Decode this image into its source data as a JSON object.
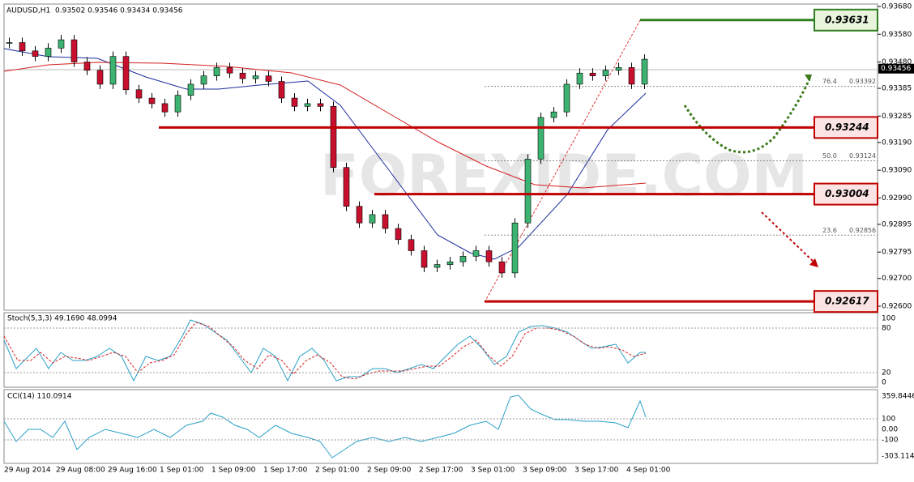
{
  "header": {
    "symbol": "AUDUSD,H1",
    "ohlc": "0.93502 0.93546 0.93434 0.93456"
  },
  "watermark": "FOREXIDE.COM",
  "price_axis": {
    "ylim": [
      0.926,
      0.9368
    ],
    "ticks": [
      {
        "value": 0.9368,
        "label": "0.93680"
      },
      {
        "value": 0.9358,
        "label": "0.93580"
      },
      {
        "value": 0.9348,
        "label": "0.93480"
      },
      {
        "value": 0.93385,
        "label": "0.93385"
      },
      {
        "value": 0.93285,
        "label": "0.93285"
      },
      {
        "value": 0.9319,
        "label": "0.93190"
      },
      {
        "value": 0.9309,
        "label": "0.93090"
      },
      {
        "value": 0.9299,
        "label": "0.92990"
      },
      {
        "value": 0.92895,
        "label": "0.92895"
      },
      {
        "value": 0.92795,
        "label": "0.92795"
      },
      {
        "value": 0.927,
        "label": "0.92700"
      },
      {
        "value": 0.926,
        "label": "0.92600"
      }
    ]
  },
  "current_price": {
    "value": 0.93456,
    "label": "0.93456"
  },
  "levels": [
    {
      "value": 0.93631,
      "label": "0.93631",
      "color": "#2e7d1e"
    },
    {
      "value": 0.93244,
      "label": "0.93244",
      "color": "#c00000"
    },
    {
      "value": 0.93004,
      "label": "0.93004",
      "color": "#c00000"
    },
    {
      "value": 0.92617,
      "label": "0.92617",
      "color": "#c00000"
    }
  ],
  "fib": [
    {
      "level": "76.4",
      "value": 0.93392,
      "label": "0.93392"
    },
    {
      "level": "50.0",
      "value": 0.93124,
      "label": "0.93124"
    },
    {
      "level": "23.6",
      "value": 0.92856,
      "label": "0.92856"
    }
  ],
  "closes": [
    0.9355,
    0.9352,
    0.935,
    0.9353,
    0.9356,
    0.9348,
    0.9345,
    0.934,
    0.935,
    0.9338,
    0.9335,
    0.9333,
    0.933,
    0.9336,
    0.934,
    0.9343,
    0.9346,
    0.9344,
    0.9342,
    0.9343,
    0.9341,
    0.9335,
    0.9332,
    0.9333,
    0.9332,
    0.931,
    0.9296,
    0.929,
    0.9293,
    0.9288,
    0.9284,
    0.928,
    0.9274,
    0.9275,
    0.9276,
    0.9278,
    0.928,
    0.9276,
    0.9272,
    0.929,
    0.9313,
    0.9328,
    0.933,
    0.934,
    0.9344,
    0.9343,
    0.9345,
    0.9346,
    0.934,
    0.9349
  ],
  "time_labels": [
    "29 Aug 2014",
    "29 Aug 08:00",
    "29 Aug 16:00",
    "1 Sep 01:00",
    "1 Sep 09:00",
    "1 Sep 17:00",
    "2 Sep 01:00",
    "2 Sep 09:00",
    "2 Sep 17:00",
    "3 Sep 01:00",
    "3 Sep 09:00",
    "3 Sep 17:00",
    "4 Sep 01:00"
  ],
  "stoch": {
    "label": "Stoch(5,3,3) 49.1690 48.0994",
    "ticks": [
      "100",
      "80",
      "20",
      "0"
    ]
  },
  "cci": {
    "label": "CCI(14) 110.0914",
    "ticks": [
      "359.8446",
      "100",
      "0.00",
      "-100",
      "-303.1142"
    ]
  }
}
